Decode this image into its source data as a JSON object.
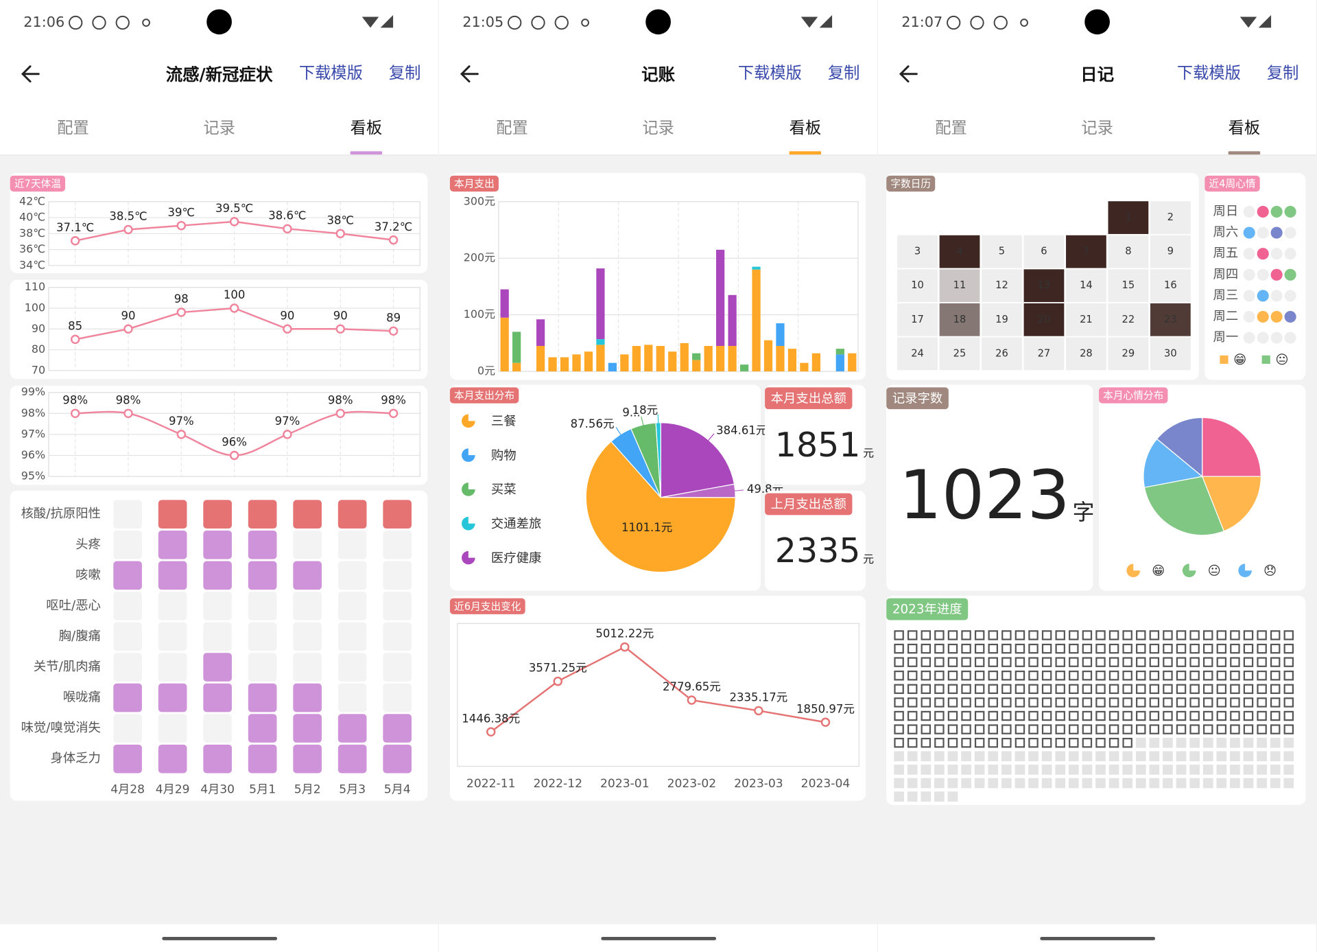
{
  "screens": [
    {
      "status_time": "21:06",
      "header": {
        "title": "流感/新冠症状",
        "actions": [
          "下载模版",
          "复制"
        ]
      },
      "tabs": [
        "配置",
        "记录",
        "看板"
      ],
      "active_tab": 2,
      "accent": "#ce93d8",
      "charts": [
        {
          "type": "line",
          "title": "近7天体温",
          "color": "#f0849c",
          "grid": true,
          "values": [
            37.1,
            38.5,
            39,
            39.5,
            38.6,
            38,
            37.2
          ],
          "value_labels": [
            "37.1℃",
            "38.5℃",
            "39℃",
            "39.5℃",
            "38.6℃",
            "38℃",
            "37.2℃"
          ],
          "ylim": [
            34,
            42
          ],
          "yticks": [
            {
              "value": 34,
              "label": "34℃"
            },
            {
              "value": 36,
              "label": "36℃"
            },
            {
              "value": 38,
              "label": "38℃"
            },
            {
              "value": 40,
              "label": "40℃"
            },
            {
              "value": 42,
              "label": "42℃"
            }
          ]
        },
        {
          "type": "line",
          "color": "#f0849c",
          "grid": true,
          "values": [
            85,
            90,
            98,
            100,
            90,
            90,
            89
          ],
          "ylim": [
            70,
            110
          ],
          "yticks": [
            70,
            80,
            90,
            100,
            110
          ]
        },
        {
          "type": "line",
          "color": "#f0849c",
          "grid": true,
          "smooth": true,
          "values": [
            98,
            98,
            97,
            96,
            97,
            98,
            98
          ],
          "value_labels": [
            "98%",
            "98%",
            "97%",
            "96%",
            "97%",
            "98%",
            "98%"
          ],
          "ylim": [
            95,
            99
          ],
          "yticks": [
            {
              "value": 95,
              "label": "95%"
            },
            {
              "value": 96,
              "label": "96%"
            },
            {
              "value": 97,
              "label": "97%"
            },
            {
              "value": 98,
              "label": "98%"
            },
            {
              "value": 99,
              "label": "99%"
            }
          ]
        },
        {
          "type": "heatmap",
          "categories": [
            "4月28",
            "4月29",
            "4月30",
            "5月1",
            "5月2",
            "5月3",
            "5月4"
          ],
          "series": [
            {
              "name": "核酸/抗原阳性",
              "color": "#e57373",
              "values": [
                0,
                1,
                1,
                1,
                1,
                1,
                1
              ]
            },
            {
              "name": "头疼",
              "color": "#ce93d8",
              "values": [
                0,
                1,
                1,
                1,
                0,
                0,
                0
              ]
            },
            {
              "name": "咳嗽",
              "color": "#ce93d8",
              "values": [
                1,
                1,
                1,
                1,
                1,
                0,
                0
              ]
            },
            {
              "name": "呕吐/恶心",
              "color": "#ce93d8",
              "values": [
                0,
                0,
                0,
                0,
                0,
                0,
                0
              ]
            },
            {
              "name": "胸/腹痛",
              "color": "#ce93d8",
              "values": [
                0,
                0,
                0,
                0,
                0,
                0,
                0
              ]
            },
            {
              "name": "关节/肌肉痛",
              "color": "#ce93d8",
              "values": [
                0,
                0,
                1,
                0,
                0,
                0,
                0
              ]
            },
            {
              "name": "喉咙痛",
              "color": "#ce93d8",
              "values": [
                1,
                1,
                1,
                1,
                1,
                0,
                0
              ]
            },
            {
              "name": "味觉/嗅觉消失",
              "color": "#ce93d8",
              "values": [
                0,
                0,
                0,
                1,
                1,
                1,
                1
              ]
            },
            {
              "name": "身体乏力",
              "color": "#ce93d8",
              "values": [
                1,
                1,
                1,
                1,
                1,
                1,
                1
              ]
            }
          ]
        }
      ]
    },
    {
      "status_time": "21:05",
      "header": {
        "title": "记账",
        "actions": [
          "下载模版",
          "复制"
        ]
      },
      "tabs": [
        "配置",
        "记录",
        "看板"
      ],
      "active_tab": 2,
      "accent": "#ffa726",
      "charts": [
        {
          "type": "stacked-bar",
          "title": "本月支出",
          "grid": true,
          "categories": [
            null,
            null,
            null,
            null,
            null,
            null,
            null,
            null,
            null,
            null,
            null,
            null,
            null,
            null,
            null,
            null,
            null,
            null,
            null,
            null,
            null,
            null,
            null,
            null,
            null,
            null,
            null,
            null,
            null,
            null
          ],
          "series": [
            {
              "name": "三餐",
              "color": "#ffa726",
              "values": [
                95,
                15,
                0,
                45,
                25,
                25,
                30,
                35,
                47,
                0,
                30,
                45,
                47,
                45,
                35,
                50,
                20,
                45,
                45,
                45,
                0,
                180,
                55,
                45,
                40,
                15,
                32,
                0,
                0,
                32
              ]
            },
            {
              "name": "购物",
              "color": "#42a5f5",
              "values": [
                0,
                0,
                0,
                0,
                0,
                0,
                0,
                0,
                0,
                15,
                0,
                0,
                0,
                0,
                0,
                0,
                0,
                0,
                0,
                0,
                0,
                0,
                0,
                40,
                0,
                0,
                0,
                0,
                30,
                0
              ]
            },
            {
              "name": "买菜",
              "color": "#66bb6a",
              "values": [
                0,
                55,
                0,
                0,
                0,
                0,
                0,
                0,
                0,
                0,
                0,
                0,
                0,
                0,
                0,
                0,
                12,
                0,
                0,
                0,
                12,
                0,
                0,
                0,
                0,
                0,
                0,
                0,
                10,
                0
              ]
            },
            {
              "name": "交通差旅",
              "color": "#26c6da",
              "values": [
                0,
                0,
                0,
                0,
                0,
                0,
                0,
                0,
                10,
                0,
                0,
                0,
                0,
                0,
                0,
                0,
                0,
                0,
                0,
                0,
                0,
                5,
                0,
                0,
                0,
                0,
                0,
                0,
                0,
                0
              ]
            },
            {
              "name": "医疗健康",
              "color": "#ab47bc",
              "values": [
                50,
                0,
                0,
                47,
                0,
                0,
                0,
                0,
                125,
                0,
                0,
                0,
                0,
                0,
                0,
                0,
                0,
                0,
                170,
                90,
                0,
                0,
                0,
                0,
                0,
                0,
                0,
                0,
                0,
                0
              ]
            }
          ],
          "ylim": [
            0,
            300
          ],
          "yticks": [
            {
              "value": 0,
              "label": "0元"
            },
            {
              "value": 100,
              "label": "100元"
            },
            {
              "value": 200,
              "label": "200元"
            },
            {
              "value": 300,
              "label": "300元"
            }
          ]
        },
        {
          "type": "pie",
          "title": "本月支出分布",
          "values": [
            384.61,
            49.8,
            1101.1,
            87.56,
            95,
            18
          ],
          "value_labels": [
            "384.61元",
            "49.8元",
            "1101.1元",
            "87.56元",
            "9...",
            "18元"
          ],
          "colors": [
            "#ab47bc",
            "#ba68c8",
            "#ffa726",
            "#42a5f5",
            "#66bb6a",
            "#26c6da"
          ],
          "legend": [
            {
              "name": "三餐",
              "color": "#ffa726"
            },
            {
              "name": "购物",
              "color": "#42a5f5"
            },
            {
              "name": "买菜",
              "color": "#66bb6a"
            },
            {
              "name": "交通差旅",
              "color": "#26c6da"
            },
            {
              "name": "医疗健康",
              "color": "#ab47bc"
            }
          ]
        },
        {
          "type": "stat",
          "title": "本月支出总额",
          "value": 1851,
          "unit": "元"
        },
        {
          "type": "stat",
          "title": "上月支出总额",
          "value": 2335,
          "unit": "元"
        },
        {
          "type": "line",
          "title": "近6月支出变化",
          "color": "#e57373",
          "categories": [
            "2022-11",
            "2022-12",
            "2023-01",
            "2023-02",
            "2023-03",
            "2023-04"
          ],
          "values": [
            1446.38,
            3571.25,
            5012.22,
            2779.65,
            2335.17,
            1850.97
          ],
          "value_labels": [
            "1446.38元",
            "3571.25元",
            "5012.22元",
            "2779.65元",
            "2335.17元",
            "1850.97元"
          ],
          "ylim": [
            0,
            6000
          ]
        }
      ]
    },
    {
      "status_time": "21:07",
      "header": {
        "title": "日记",
        "actions": [
          "下载模版",
          "复制"
        ]
      },
      "tabs": [
        "配置",
        "记录",
        "看板"
      ],
      "active_tab": 2,
      "accent": "#a1887f",
      "charts": [
        {
          "type": "calendar",
          "title": "字数日历",
          "color": "#3e2723",
          "categories": [
            null,
            null,
            null,
            null,
            null,
            1,
            2,
            3,
            4,
            5,
            6,
            7,
            8,
            9,
            10,
            11,
            12,
            13,
            14,
            15,
            16,
            17,
            18,
            19,
            20,
            21,
            22,
            23,
            24,
            25,
            26,
            27,
            28,
            29,
            30
          ],
          "values": [
            null,
            null,
            null,
            null,
            null,
            1000,
            0,
            0,
            1000,
            0,
            0,
            1000,
            0,
            0,
            0,
            200,
            0,
            1000,
            0,
            0,
            0,
            0,
            600,
            0,
            1000,
            0,
            0,
            900,
            0,
            0,
            0,
            0,
            0,
            0,
            0
          ]
        },
        {
          "type": "dot-grid",
          "title": "近4周心情",
          "categories": [
            "周日",
            "周六",
            "周五",
            "周四",
            "周三",
            "周二",
            "周一"
          ],
          "cells": [
            [
              null,
              "#f06292",
              "#81c784",
              "#81c784"
            ],
            [
              "#64b5f6",
              null,
              "#7986cb",
              null
            ],
            [
              null,
              "#f06292",
              null,
              null
            ],
            [
              null,
              null,
              "#f06292",
              "#81c784"
            ],
            [
              null,
              "#64b5f6",
              null,
              null
            ],
            [
              null,
              "#ffb74d",
              "#ffb74d",
              "#7986cb"
            ],
            [
              null,
              null,
              null,
              null
            ]
          ],
          "legend": [
            {
              "name": "😁",
              "color": "#ffb74d"
            },
            {
              "name": "😐",
              "color": "#81c784"
            }
          ]
        },
        {
          "type": "stat",
          "title": "记录字数",
          "value": 1023,
          "unit": "字"
        },
        {
          "type": "pie",
          "title": "本月心情分布",
          "values": [
            25,
            19,
            28,
            14,
            14
          ],
          "colors": [
            "#f06292",
            "#ffb74d",
            "#81c784",
            "#64b5f6",
            "#7986cb"
          ],
          "legend": [
            {
              "name": "😁",
              "color": "#ffb74d"
            },
            {
              "name": "😐",
              "color": "#81c784"
            },
            {
              "name": "😞",
              "color": "#64b5f6"
            }
          ]
        },
        {
          "type": "waffle",
          "title": "2023年进度",
          "value": 258,
          "total": 365,
          "color": "#555555"
        }
      ]
    }
  ]
}
